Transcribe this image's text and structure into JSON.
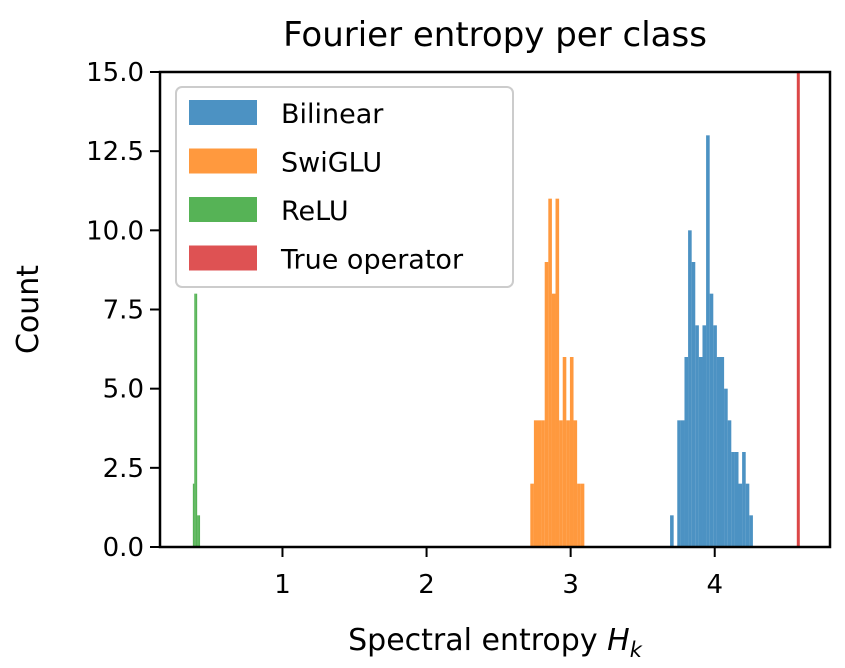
{
  "chart_data": {
    "type": "bar",
    "title": "Fourier entropy per class",
    "xlabel": "Spectral entropy",
    "xlabel_math": "H",
    "xlabel_sub": "k",
    "ylabel": "Count",
    "xlim": [
      0.15,
      4.8
    ],
    "ylim": [
      0,
      15
    ],
    "xticks": [
      1,
      2,
      3,
      4
    ],
    "yticks": [
      0.0,
      2.5,
      5.0,
      7.5,
      10.0,
      12.5,
      15.0
    ],
    "ytick_labels": [
      "0.0",
      "2.5",
      "5.0",
      "7.5",
      "10.0",
      "12.5",
      "15.0"
    ],
    "legend_position": "upper-left",
    "grid": false,
    "series": [
      {
        "name": "Bilinear",
        "color": "#1f77b4",
        "bin_width": 0.025,
        "bins": [
          [
            3.69,
            1
          ],
          [
            3.74,
            4
          ],
          [
            3.765,
            4
          ],
          [
            3.79,
            6
          ],
          [
            3.815,
            10
          ],
          [
            3.84,
            9
          ],
          [
            3.865,
            7
          ],
          [
            3.89,
            6
          ],
          [
            3.915,
            7
          ],
          [
            3.94,
            13
          ],
          [
            3.965,
            8
          ],
          [
            3.99,
            7
          ],
          [
            4.015,
            6
          ],
          [
            4.04,
            6
          ],
          [
            4.065,
            5
          ],
          [
            4.09,
            4
          ],
          [
            4.115,
            3
          ],
          [
            4.14,
            3
          ],
          [
            4.165,
            2
          ],
          [
            4.19,
            3
          ],
          [
            4.215,
            2
          ],
          [
            4.24,
            1
          ]
        ]
      },
      {
        "name": "SwiGLU",
        "color": "#ff7f0e",
        "bin_width": 0.025,
        "bins": [
          [
            2.72,
            2
          ],
          [
            2.745,
            4
          ],
          [
            2.77,
            4
          ],
          [
            2.795,
            4
          ],
          [
            2.82,
            9
          ],
          [
            2.845,
            11
          ],
          [
            2.87,
            8
          ],
          [
            2.895,
            11
          ],
          [
            2.92,
            4
          ],
          [
            2.945,
            6
          ],
          [
            2.97,
            4
          ],
          [
            2.995,
            6
          ],
          [
            3.02,
            4
          ],
          [
            3.045,
            2
          ],
          [
            3.07,
            2
          ]
        ]
      },
      {
        "name": "ReLU",
        "color": "#2ca02c",
        "bin_width": 0.01,
        "bins": [
          [
            0.378,
            2
          ],
          [
            0.388,
            8
          ],
          [
            0.398,
            8
          ],
          [
            0.408,
            1
          ],
          [
            0.418,
            1
          ]
        ]
      },
      {
        "name": "True operator",
        "color": "#d62728",
        "type": "vline",
        "x": 4.58
      }
    ]
  }
}
